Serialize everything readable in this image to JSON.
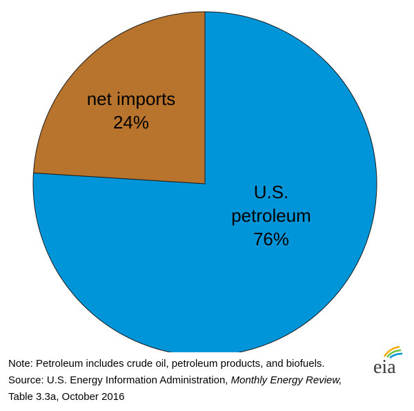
{
  "chart_data": {
    "type": "pie",
    "slices": [
      {
        "label_lines": [
          "U.S.",
          "petroleum"
        ],
        "value_text": "76%",
        "value": 76,
        "color": "#0095d9"
      },
      {
        "label_lines": [
          "net imports"
        ],
        "value_text": "24%",
        "value": 24,
        "color": "#b8732c"
      }
    ]
  },
  "notes": {
    "note": "Note: Petroleum includes crude oil, petroleum products, and biofuels.",
    "source_prefix": "Source: U.S. Energy Information Administration, ",
    "source_italic": "Monthly Energy Review,",
    "source_line2": "Table 3.3a, October 2016"
  },
  "logo": {
    "text": "eia",
    "colors": [
      "#f7a800",
      "#6fbf3f",
      "#0095d9"
    ]
  }
}
